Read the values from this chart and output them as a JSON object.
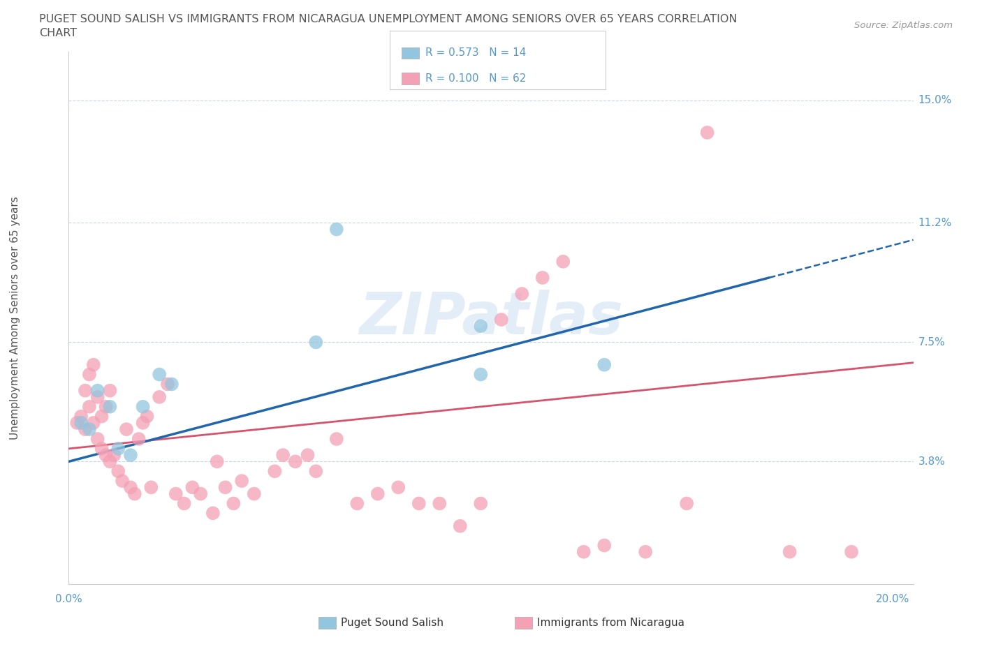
{
  "title_line1": "PUGET SOUND SALISH VS IMMIGRANTS FROM NICARAGUA UNEMPLOYMENT AMONG SENIORS OVER 65 YEARS CORRELATION",
  "title_line2": "CHART",
  "source": "Source: ZipAtlas.com",
  "ylabel": "Unemployment Among Seniors over 65 years",
  "ytick_labels": [
    "15.0%",
    "11.2%",
    "7.5%",
    "3.8%"
  ],
  "ytick_values": [
    0.15,
    0.112,
    0.075,
    0.038
  ],
  "xlim": [
    0.0,
    0.2
  ],
  "ylim": [
    0.0,
    0.165
  ],
  "watermark": "ZIPatlas",
  "series1_label": "Puget Sound Salish",
  "series2_label": "Immigrants from Nicaragua",
  "series1_color": "#92c5de",
  "series2_color": "#f4a0b5",
  "series1_line_color": "#2166ac",
  "series2_line_color": "#d6536d",
  "background_color": "#ffffff",
  "grid_color": "#c8d4e8",
  "title_color": "#555555",
  "axis_label_color": "#5599cc",
  "legend_r1": "R = 0.573",
  "legend_n1": "N = 14",
  "legend_r2": "R = 0.100",
  "legend_n2": "N = 62",
  "blue_x": [
    0.003,
    0.005,
    0.007,
    0.01,
    0.012,
    0.015,
    0.018,
    0.022,
    0.025,
    0.06,
    0.065,
    0.1,
    0.13,
    0.1
  ],
  "blue_y": [
    0.05,
    0.048,
    0.06,
    0.055,
    0.042,
    0.04,
    0.055,
    0.065,
    0.062,
    0.075,
    0.11,
    0.08,
    0.068,
    0.065
  ],
  "pink_x": [
    0.002,
    0.003,
    0.004,
    0.004,
    0.005,
    0.005,
    0.006,
    0.006,
    0.007,
    0.007,
    0.008,
    0.008,
    0.009,
    0.009,
    0.01,
    0.01,
    0.011,
    0.012,
    0.013,
    0.014,
    0.015,
    0.016,
    0.017,
    0.018,
    0.019,
    0.02,
    0.022,
    0.024,
    0.026,
    0.028,
    0.03,
    0.032,
    0.035,
    0.036,
    0.038,
    0.04,
    0.042,
    0.045,
    0.05,
    0.052,
    0.055,
    0.058,
    0.06,
    0.065,
    0.07,
    0.075,
    0.08,
    0.085,
    0.09,
    0.095,
    0.1,
    0.105,
    0.11,
    0.115,
    0.12,
    0.125,
    0.13,
    0.14,
    0.15,
    0.155,
    0.175,
    0.19
  ],
  "pink_y": [
    0.05,
    0.052,
    0.048,
    0.06,
    0.055,
    0.065,
    0.05,
    0.068,
    0.045,
    0.058,
    0.042,
    0.052,
    0.04,
    0.055,
    0.038,
    0.06,
    0.04,
    0.035,
    0.032,
    0.048,
    0.03,
    0.028,
    0.045,
    0.05,
    0.052,
    0.03,
    0.058,
    0.062,
    0.028,
    0.025,
    0.03,
    0.028,
    0.022,
    0.038,
    0.03,
    0.025,
    0.032,
    0.028,
    0.035,
    0.04,
    0.038,
    0.04,
    0.035,
    0.045,
    0.025,
    0.028,
    0.03,
    0.025,
    0.025,
    0.018,
    0.025,
    0.082,
    0.09,
    0.095,
    0.1,
    0.01,
    0.012,
    0.01,
    0.025,
    0.14,
    0.01,
    0.01
  ]
}
